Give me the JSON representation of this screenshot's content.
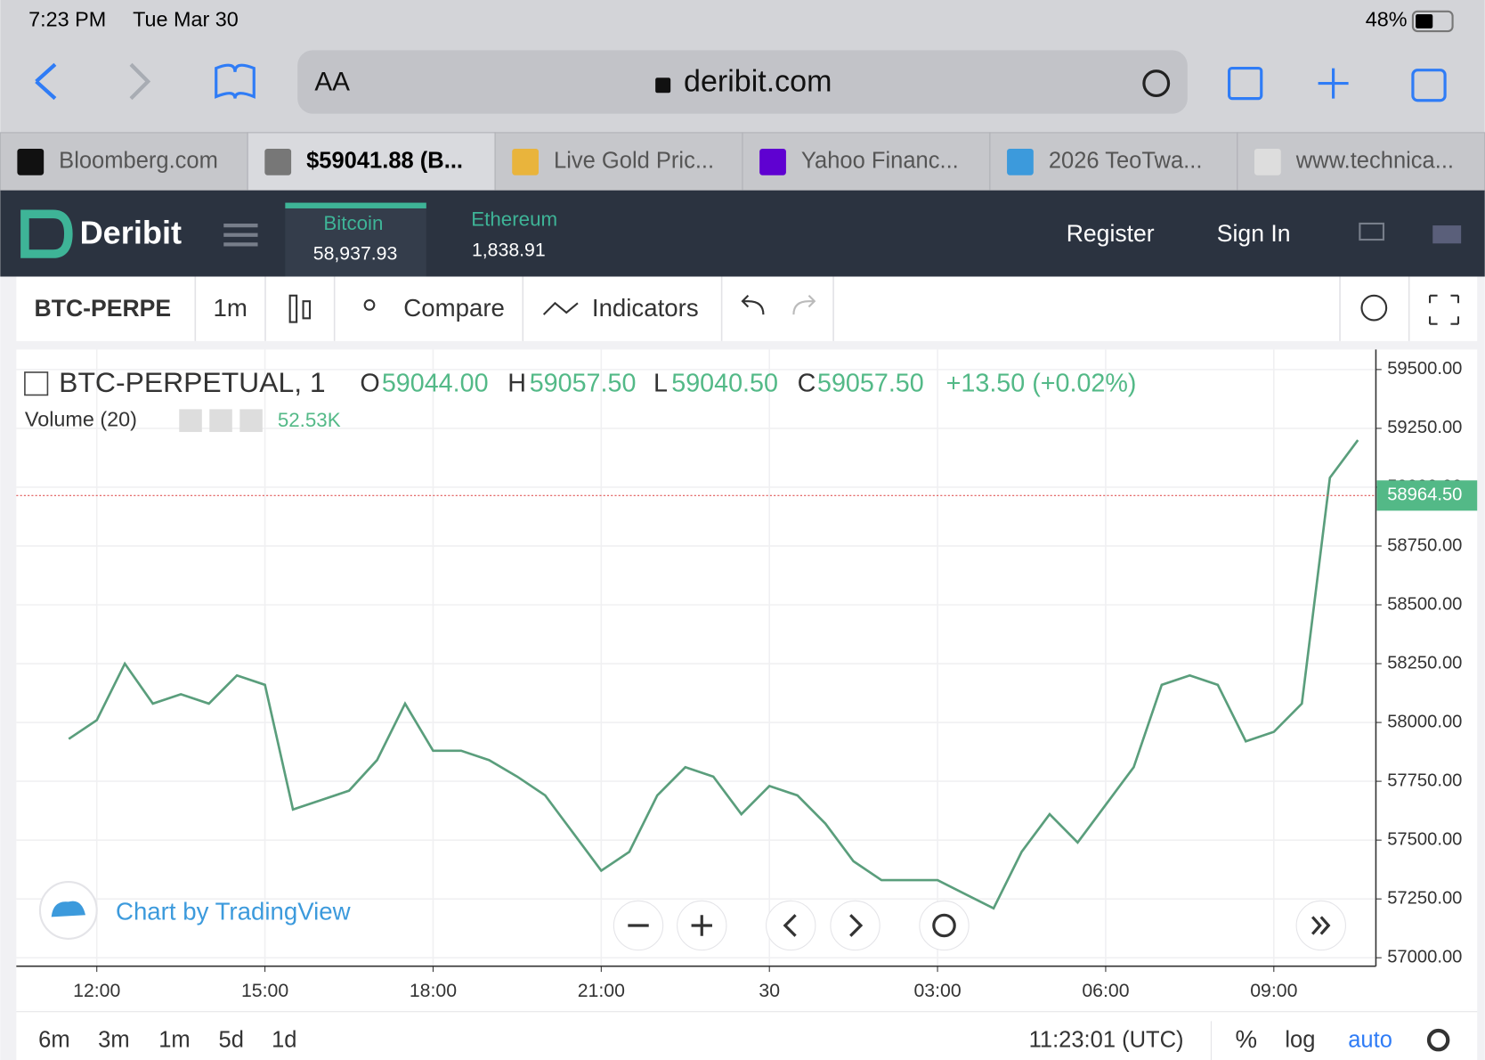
{
  "status_bar": {
    "time": "7:23 PM",
    "date": "Tue Mar 30",
    "battery": "48%"
  },
  "browser": {
    "text_size": "AA",
    "url": "deribit.com",
    "tabs": [
      "Bloomberg.com",
      "$59041.88 (B...",
      "Live Gold Pric...",
      "Yahoo Financ...",
      "2026 TeoTwa...",
      "www.technica..."
    ]
  },
  "site_header": {
    "logo": "Deribit",
    "markets": [
      {
        "name": "Bitcoin",
        "price": "58,937.93"
      },
      {
        "name": "Ethereum",
        "price": "1,838.91"
      }
    ],
    "register": "Register",
    "sign_in": "Sign In"
  },
  "toolbar": {
    "symbol": "BTC-PERPE",
    "interval": "1m",
    "compare": "Compare",
    "indicators": "Indicators"
  },
  "chart_legend": {
    "symbol": "BTC-PERPETUAL, 1",
    "open_label": "O",
    "open": "59044.00",
    "high_label": "H",
    "high": "59057.50",
    "low_label": "L",
    "low": "59040.50",
    "close_label": "C",
    "close": "59057.50",
    "change": "+13.50 (+0.02%)",
    "volume_label": "Volume (20)",
    "volume": "52.53K"
  },
  "watermark": "Chart by TradingView",
  "chart_data": {
    "type": "line",
    "categories": [
      null,
      "12:00",
      null,
      null,
      null,
      null,
      null,
      "15:00",
      null,
      null,
      null,
      null,
      null,
      "18:00",
      null,
      null,
      null,
      null,
      null,
      "21:00",
      null,
      null,
      null,
      null,
      null,
      "30",
      null,
      null,
      null,
      null,
      null,
      "03:00",
      null,
      null,
      null,
      null,
      null,
      "06:00",
      null,
      null,
      null,
      null,
      null,
      "09:00",
      null,
      null,
      null
    ],
    "series": [
      {
        "color": "#5a9e7c",
        "values": [
          57930,
          58010,
          58250,
          58080,
          58120,
          58080,
          58200,
          58160,
          57630,
          57670,
          57710,
          57840,
          58080,
          57880,
          57880,
          57840,
          57770,
          57690,
          57530,
          57370,
          57450,
          57690,
          57810,
          57770,
          57610,
          57730,
          57690,
          57570,
          57410,
          57330,
          57330,
          57330,
          57270,
          57210,
          57450,
          57610,
          57490,
          57650,
          57810,
          58160,
          58200,
          58160,
          57920,
          57960,
          58080,
          59040,
          59200
        ]
      }
    ],
    "ylim": [
      56964,
      59585
    ],
    "yticks": [
      {
        "value": 57000,
        "label": "57000.00"
      },
      {
        "value": 57250,
        "label": "57250.00"
      },
      {
        "value": 57500,
        "label": "57500.00"
      },
      {
        "value": 57750,
        "label": "57750.00"
      },
      {
        "value": 58000,
        "label": "58000.00"
      },
      {
        "value": 58250,
        "label": "58250.00"
      },
      {
        "value": 58500,
        "label": "58500.00"
      },
      {
        "value": 58750,
        "label": "58750.00"
      },
      {
        "value": 59000,
        "label": "59000.00"
      },
      {
        "value": 59250,
        "label": "59250.00"
      },
      {
        "value": 59500,
        "label": "59500.00"
      }
    ],
    "last_price": {
      "value": 58964.5,
      "label": "58964.50"
    },
    "grid": true
  },
  "bottom_bar": {
    "ranges": [
      "6m",
      "3m",
      "1m",
      "5d",
      "1d"
    ],
    "clock": "11:23:01 (UTC)",
    "percent": "%",
    "log": "log",
    "auto": "auto"
  }
}
